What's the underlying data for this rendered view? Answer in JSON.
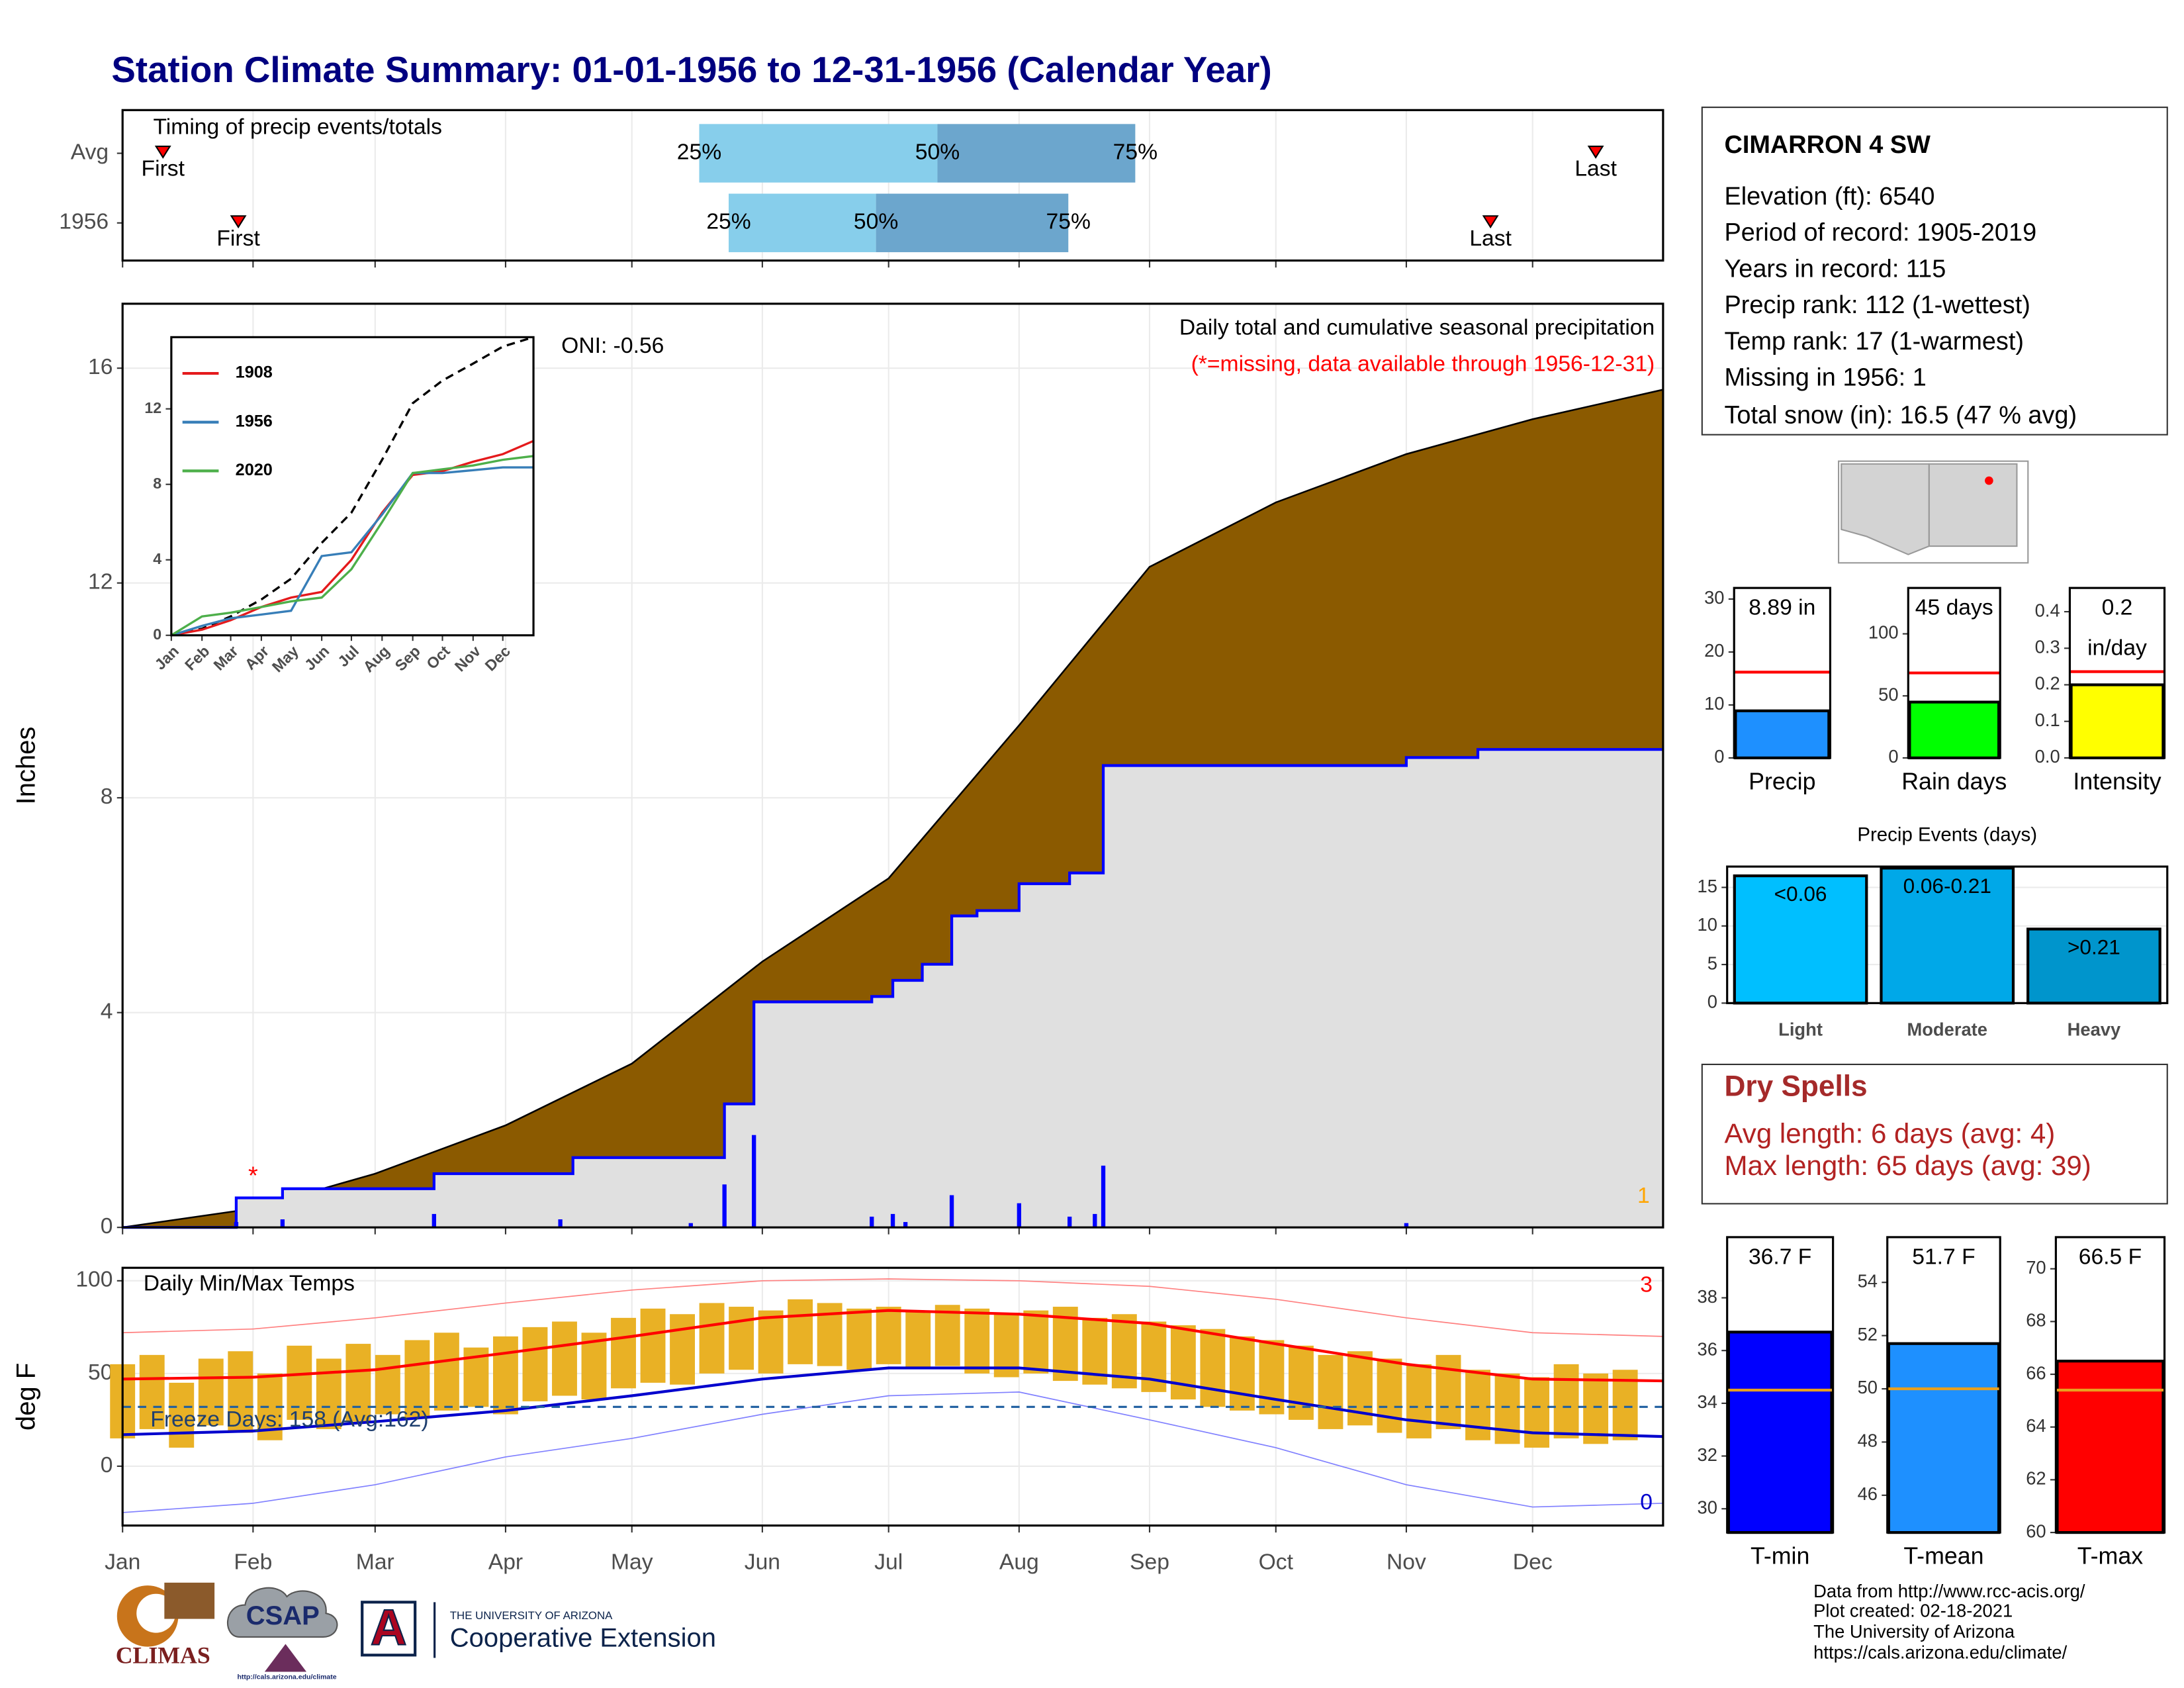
{
  "title": "Station Climate Summary: 01-01-1956 to 12-31-1956 (Calendar Year)",
  "station": {
    "name": "CIMARRON 4 SW",
    "lines": [
      "Elevation (ft): 6540",
      "Period of record: 1905-2019",
      "Years in record: 115",
      "Precip rank: 112 (1-wettest)",
      "Temp rank: 17 (1-warmest)",
      "Missing in 1956: 1",
      "Total snow (in): 16.5 (47 % avg)"
    ]
  },
  "dry_spells": {
    "title": "Dry Spells",
    "lines": [
      "Avg length: 6 days (avg: 4)",
      "Max length: 65 days (avg: 39)"
    ]
  },
  "footer": {
    "source": [
      "Data from http://www.rcc-acis.org/",
      "Plot created: 02-18-2021",
      "The University of Arizona",
      "https://cals.arizona.edu/climate/"
    ],
    "climas": "CLIMAS",
    "csap": "CSAP",
    "csap_url": "http://cals.arizona.edu/climate",
    "ua_letter": "A",
    "ua": "THE UNIVERSITY OF ARIZONA",
    "coop": "Cooperative Extension"
  },
  "chart_data": [
    {
      "type": "timeline",
      "title": "Timing of precip events/totals",
      "categories": [
        "Avg",
        "1956"
      ],
      "first": [
        9.6,
        27.5
      ],
      "p25": [
        137,
        144
      ],
      "p50": [
        193.6,
        179
      ],
      "p75": [
        240.6,
        224.7
      ],
      "last": [
        350,
        325
      ],
      "labels": {
        "first": "First",
        "last": "Last",
        "p25": "25%",
        "p50": "50%",
        "p75": "75%"
      },
      "colors": [
        "#87ceeb",
        "#6ca6cd"
      ],
      "marker_color": "#ff0000",
      "xlim": [
        0,
        366
      ],
      "xticks": [
        0,
        31,
        60,
        91,
        121,
        152,
        182,
        213,
        244,
        274,
        305,
        335
      ],
      "grid": true
    },
    {
      "type": "area",
      "title": "Daily total and cumulative seasonal precipitation",
      "subtitle": "(*=missing, data available through 1956-12-31)",
      "annotation": "ONI: -0.56",
      "y_label": "Inches",
      "missing": {
        "label": "*",
        "x": 31
      },
      "missing_count": 1,
      "xlim": [
        0,
        366
      ],
      "xticks": [
        0,
        31,
        60,
        91,
        121,
        152,
        182,
        213,
        244,
        274,
        305,
        335
      ],
      "ylim": [
        0,
        17.2
      ],
      "yticks": [
        0,
        4,
        8,
        12,
        16
      ],
      "grid": true,
      "series": [
        {
          "color": "#8b5a00",
          "x": [
            0,
            31,
            60,
            91,
            121,
            152,
            182,
            213,
            244,
            274,
            305,
            335,
            366
          ],
          "values": [
            0,
            0.35,
            1.0,
            1.9,
            3.05,
            4.95,
            6.5,
            9.35,
            12.3,
            13.5,
            14.4,
            15.05,
            15.6
          ]
        },
        {
          "color": "#0000ff",
          "x": [
            0,
            27,
            38,
            74,
            107,
            143,
            150,
            178,
            183,
            190,
            197,
            203,
            213,
            225,
            233,
            305,
            322
          ],
          "values": [
            0,
            0.55,
            0.72,
            1.0,
            1.3,
            2.3,
            4.2,
            4.3,
            4.6,
            4.9,
            5.8,
            5.9,
            6.4,
            6.6,
            8.6,
            8.75,
            8.9
          ]
        },
        {
          "color": "#0000ff",
          "x": [
            27,
            38,
            74,
            104,
            135,
            143,
            150,
            178,
            183,
            186,
            197,
            213,
            225,
            231,
            233,
            305
          ],
          "values": [
            0.1,
            0.15,
            0.25,
            0.15,
            0.08,
            0.8,
            1.72,
            0.2,
            0.25,
            0.1,
            0.6,
            0.45,
            0.2,
            0.25,
            1.15,
            0.08
          ]
        }
      ]
    },
    {
      "type": "line",
      "xlim": [
        0,
        366
      ],
      "ylim": [
        0,
        15.8
      ],
      "yticks": [
        0,
        4,
        8,
        12
      ],
      "xticks": [
        {
          "value": 0,
          "label": "Jan"
        },
        {
          "value": 31,
          "label": "Feb"
        },
        {
          "value": 60,
          "label": "Mar"
        },
        {
          "value": 91,
          "label": "Apr"
        },
        {
          "value": 121,
          "label": "May"
        },
        {
          "value": 152,
          "label": "Jun"
        },
        {
          "value": 182,
          "label": "Jul"
        },
        {
          "value": 213,
          "label": "Aug"
        },
        {
          "value": 244,
          "label": "Sep"
        },
        {
          "value": 274,
          "label": "Oct"
        },
        {
          "value": 305,
          "label": "Nov"
        },
        {
          "value": 335,
          "label": "Dec"
        }
      ],
      "x": [
        0,
        31,
        60,
        91,
        121,
        152,
        182,
        213,
        244,
        274,
        305,
        335,
        366
      ],
      "series": [
        {
          "color": "#000000",
          "dashed": true,
          "values": [
            0,
            0.35,
            1.0,
            1.9,
            3.0,
            4.9,
            6.5,
            9.3,
            12.3,
            13.5,
            14.4,
            15.3,
            15.8
          ]
        },
        {
          "name": "1908",
          "color": "#e41a1c",
          "values": [
            0,
            0.3,
            0.8,
            1.5,
            2.0,
            2.3,
            4.0,
            6.5,
            8.5,
            8.7,
            9.2,
            9.6,
            10.3
          ]
        },
        {
          "name": "1956",
          "color": "#377eb8",
          "values": [
            0,
            0.5,
            0.9,
            1.1,
            1.3,
            4.2,
            4.4,
            6.4,
            8.6,
            8.6,
            8.75,
            8.9,
            8.9
          ]
        },
        {
          "name": "2020",
          "color": "#4daf4a",
          "values": [
            0,
            1.0,
            1.2,
            1.5,
            1.8,
            2.0,
            3.5,
            6.0,
            8.6,
            8.8,
            9.0,
            9.3,
            9.5
          ]
        }
      ]
    },
    {
      "type": "range",
      "title": "Daily Min/Max Temps",
      "y_label": "deg F",
      "freeze": 32,
      "freeze_label": "Freeze Days: 158 (Avg:162)",
      "record_high_count": 3,
      "record_low_count": 0,
      "xlim": [
        0,
        366
      ],
      "ylim": [
        -32,
        107
      ],
      "yticks": [
        0,
        50,
        100
      ],
      "grid": true,
      "xticks": [
        {
          "value": 0,
          "label": "Jan"
        },
        {
          "value": 31,
          "label": "Feb"
        },
        {
          "value": 60,
          "label": "Mar"
        },
        {
          "value": 91,
          "label": "Apr"
        },
        {
          "value": 121,
          "label": "May"
        },
        {
          "value": 152,
          "label": "Jun"
        },
        {
          "value": 182,
          "label": "Jul"
        },
        {
          "value": 213,
          "label": "Aug"
        },
        {
          "value": 244,
          "label": "Sep"
        },
        {
          "value": 274,
          "label": "Oct"
        },
        {
          "value": 305,
          "label": "Nov"
        },
        {
          "value": 335,
          "label": "Dec"
        }
      ],
      "bars": {
        "color": "#e9b125",
        "x": [
          0,
          7,
          14,
          21,
          28,
          35,
          42,
          49,
          56,
          63,
          70,
          77,
          84,
          91,
          98,
          105,
          112,
          119,
          126,
          133,
          140,
          147,
          154,
          161,
          168,
          175,
          182,
          189,
          196,
          203,
          210,
          217,
          224,
          231,
          238,
          245,
          252,
          259,
          266,
          273,
          280,
          287,
          294,
          301,
          308,
          315,
          322,
          329,
          336,
          343,
          350,
          357
        ],
        "high": [
          55,
          60,
          45,
          58,
          62,
          50,
          65,
          58,
          66,
          60,
          68,
          72,
          64,
          70,
          75,
          78,
          72,
          80,
          85,
          82,
          88,
          86,
          84,
          90,
          88,
          85,
          86,
          84,
          87,
          85,
          82,
          84,
          86,
          80,
          82,
          78,
          76,
          74,
          70,
          68,
          65,
          60,
          62,
          58,
          55,
          60,
          52,
          50,
          48,
          55,
          50,
          52
        ],
        "low": [
          15,
          20,
          10,
          22,
          18,
          14,
          25,
          20,
          24,
          28,
          26,
          30,
          32,
          28,
          35,
          38,
          36,
          42,
          45,
          44,
          50,
          52,
          50,
          55,
          54,
          52,
          55,
          53,
          54,
          50,
          48,
          50,
          46,
          44,
          42,
          40,
          36,
          32,
          30,
          28,
          25,
          20,
          22,
          18,
          15,
          20,
          14,
          12,
          10,
          15,
          12,
          14
        ]
      },
      "x": [
        0,
        31,
        60,
        91,
        121,
        152,
        182,
        213,
        244,
        274,
        305,
        335,
        366
      ],
      "series": [
        {
          "color": "#ff8080",
          "width": 0.8,
          "values": [
            72,
            74,
            80,
            88,
            95,
            100,
            101,
            100,
            97,
            90,
            80,
            72,
            70
          ]
        },
        {
          "color": "#8080ff",
          "width": 0.8,
          "values": [
            -25,
            -20,
            -10,
            5,
            15,
            28,
            38,
            40,
            25,
            10,
            -10,
            -22,
            -20
          ]
        },
        {
          "color": "#ff0000",
          "width": 2,
          "values": [
            47,
            48,
            52,
            61,
            70,
            80,
            84,
            82,
            77,
            66,
            55,
            47,
            46
          ]
        },
        {
          "color": "#0000cd",
          "width": 2,
          "values": [
            17,
            19,
            24,
            30,
            38,
            47,
            53,
            53,
            47,
            36,
            25,
            18,
            16
          ]
        }
      ]
    },
    {
      "type": "bar",
      "categories": [
        "Precip"
      ],
      "values": [
        8.89
      ],
      "value_labels": [
        "8.89 in"
      ],
      "avg": [
        16.2
      ],
      "avg_color": "#ff0000",
      "color": "#1e90ff",
      "ylim": [
        0,
        32.1
      ],
      "yticks": [
        0,
        10,
        20,
        30
      ]
    },
    {
      "type": "bar",
      "categories": [
        "Rain days"
      ],
      "values": [
        45
      ],
      "value_labels": [
        "45 days"
      ],
      "avg": [
        68.5
      ],
      "avg_color": "#ff0000",
      "color": "#00ff00",
      "ylim": [
        0,
        137
      ],
      "yticks": [
        0,
        50,
        100
      ]
    },
    {
      "type": "bar",
      "categories": [
        "Intensity"
      ],
      "values": [
        0.2
      ],
      "value_labels": [
        "0.2"
      ],
      "unit": "in/day",
      "avg": [
        0.236
      ],
      "avg_color": "#ff0000",
      "color": "#ffff00",
      "ylim": [
        0,
        0.465
      ],
      "yticks": [
        {
          "value": 0,
          "label": "0.0"
        },
        0.1,
        0.2,
        0.3,
        0.4
      ]
    },
    {
      "type": "bar",
      "title": "Precip Events (days)",
      "categories": [
        "Light",
        "Moderate",
        "Heavy"
      ],
      "values": [
        16.5,
        17.5,
        9.6
      ],
      "bin_labels": [
        "<0.06",
        "0.06-0.21",
        ">0.21"
      ],
      "colors": [
        "#00bfff",
        "#00a8e8",
        "#0095cc"
      ],
      "ylim": [
        0,
        17.7
      ],
      "yticks": [
        0,
        5,
        10,
        15
      ],
      "grid": true
    },
    {
      "type": "bar",
      "categories": [
        "T-min"
      ],
      "values": [
        36.7
      ],
      "value_labels": [
        "36.7 F"
      ],
      "avg": [
        34.5
      ],
      "avg_color": "#e8a020",
      "color": "#0000ff",
      "ylim": [
        29.1,
        40.3
      ],
      "yticks": [
        30,
        32,
        34,
        36,
        38
      ]
    },
    {
      "type": "bar",
      "categories": [
        "T-mean"
      ],
      "values": [
        51.7
      ],
      "value_labels": [
        "51.7 F"
      ],
      "avg": [
        50.0
      ],
      "avg_color": "#e8a020",
      "color": "#1e90ff",
      "ylim": [
        44.6,
        55.7
      ],
      "yticks": [
        46,
        48,
        50,
        52,
        54
      ]
    },
    {
      "type": "bar",
      "categories": [
        "T-max"
      ],
      "values": [
        66.5
      ],
      "value_labels": [
        "66.5 F"
      ],
      "avg": [
        65.4
      ],
      "avg_color": "#e8a020",
      "color": "#ff0000",
      "ylim": [
        60,
        71.2
      ],
      "yticks": [
        60,
        62,
        64,
        66,
        68,
        70
      ]
    }
  ]
}
